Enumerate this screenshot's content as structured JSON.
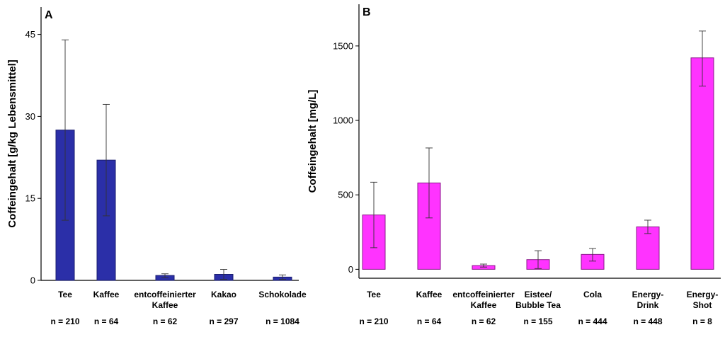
{
  "chart_data": [
    {
      "type": "bar",
      "panel_label": "A",
      "ylabel": "Coffeingehalt [g/kg Lebensmittel]",
      "ylim": [
        0,
        50
      ],
      "yticks": [
        0,
        15,
        30,
        45
      ],
      "bar_color": "#2b2fa8",
      "bar_edge": "#1a1d6e",
      "categories": [
        {
          "label": [
            "Tee"
          ],
          "n": "n = 210"
        },
        {
          "label": [
            "Kaffee"
          ],
          "n": "n = 64"
        },
        {
          "label": [
            "entcoffeinierter",
            "Kaffee"
          ],
          "n": "n = 62"
        },
        {
          "label": [
            "Kakao"
          ],
          "n": "n = 297"
        },
        {
          "label": [
            "Schokolade"
          ],
          "n": "n = 1084"
        }
      ],
      "values": [
        27.5,
        22.0,
        0.9,
        1.1,
        0.6
      ],
      "error_low": [
        11.0,
        11.8,
        0.5,
        0.2,
        0.2
      ],
      "error_high": [
        44.0,
        32.2,
        1.2,
        2.0,
        1.0
      ]
    },
    {
      "type": "bar",
      "panel_label": "B",
      "ylabel": "Coffeingehalt [mg/L]",
      "ylim": [
        -60,
        1780
      ],
      "yticks": [
        0,
        500,
        1000,
        1500
      ],
      "bar_color": "#ff33ff",
      "bar_edge": "#8a1a8a",
      "categories": [
        {
          "label": [
            "Tee"
          ],
          "n": "n = 210"
        },
        {
          "label": [
            "Kaffee"
          ],
          "n": "n = 64"
        },
        {
          "label": [
            "entcoffeinierter",
            "Kaffee"
          ],
          "n": "n = 62"
        },
        {
          "label": [
            "Eistee/",
            "Bubble Tea"
          ],
          "n": "n = 155"
        },
        {
          "label": [
            "Cola"
          ],
          "n": "n = 444"
        },
        {
          "label": [
            "Energy-",
            "Drink"
          ],
          "n": "n = 448"
        },
        {
          "label": [
            "Energy-",
            "Shot"
          ],
          "n": "n = 8"
        }
      ],
      "values": [
        365,
        580,
        25,
        65,
        100,
        285,
        1420
      ],
      "error_low": [
        145,
        345,
        15,
        5,
        55,
        240,
        1230
      ],
      "error_high": [
        585,
        815,
        35,
        125,
        140,
        330,
        1600
      ]
    }
  ]
}
